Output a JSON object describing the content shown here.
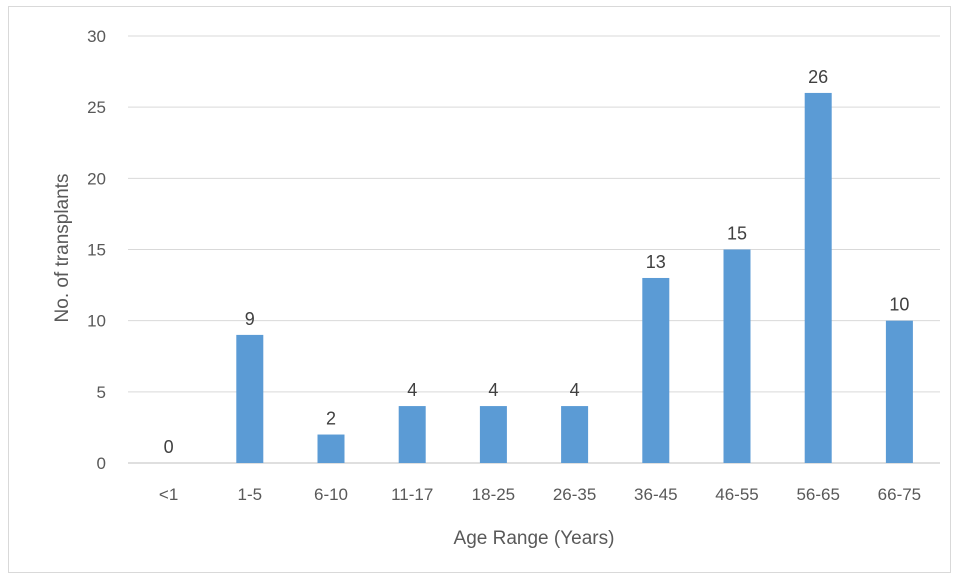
{
  "chart_data": {
    "type": "bar",
    "title": "",
    "xlabel": "Age Range (Years)",
    "ylabel": "No. of transplants",
    "categories": [
      "<1",
      "1-5",
      "6-10",
      "11-17",
      "18-25",
      "26-35",
      "36-45",
      "46-55",
      "56-65",
      "66-75"
    ],
    "values": [
      0,
      9,
      2,
      4,
      4,
      4,
      13,
      15,
      26,
      10
    ],
    "ylim": [
      0,
      30
    ],
    "yticks": [
      0,
      5,
      10,
      15,
      20,
      25,
      30
    ],
    "grid": true,
    "legend": "none",
    "colors": {
      "bar": "#5b9bd5",
      "grid": "#d9d9d9",
      "axis": "#bfbfbf"
    }
  }
}
